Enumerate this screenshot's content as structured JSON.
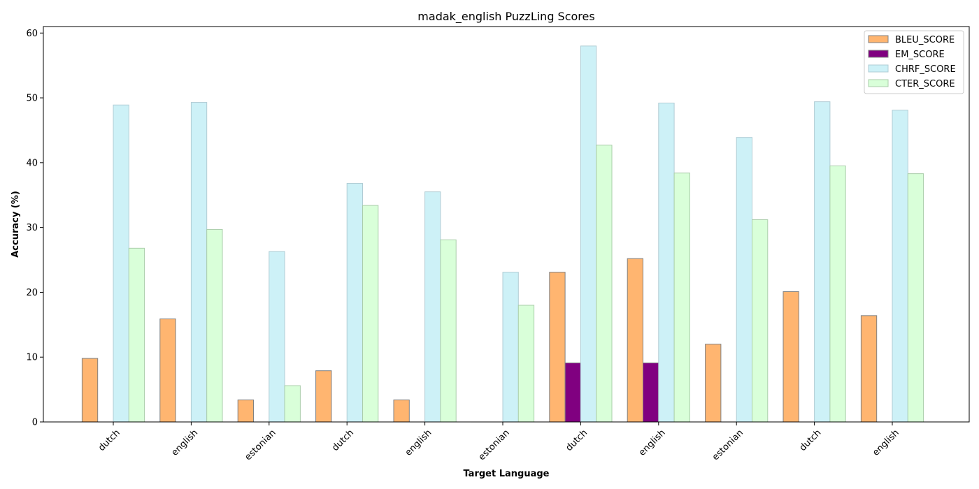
{
  "chart_data": {
    "type": "bar",
    "title": "madak_english PuzzLing Scores",
    "xlabel": "Target Language",
    "ylabel": "Accuracy (%)",
    "ylim": [
      0,
      61
    ],
    "yticks": [
      0,
      10,
      20,
      30,
      40,
      50,
      60
    ],
    "categories": [
      "dutch",
      "english",
      "estonian",
      "dutch",
      "english",
      "estonian",
      "dutch",
      "english",
      "estonian",
      "dutch",
      "english"
    ],
    "series": [
      {
        "name": "BLEU_SCORE",
        "color": "#ffb570",
        "edge": "#808080",
        "values": [
          9.8,
          15.9,
          3.4,
          7.9,
          3.4,
          0.0,
          23.1,
          25.2,
          12.0,
          20.1,
          16.4
        ]
      },
      {
        "name": "EM_SCORE",
        "color": "#800080",
        "edge": "#808080",
        "values": [
          0,
          0,
          0,
          0,
          0,
          0,
          9.1,
          9.1,
          0,
          0,
          0
        ]
      },
      {
        "name": "CHRF_SCORE",
        "color": "#cdf1f7",
        "edge": "#b0ccd4",
        "values": [
          48.9,
          49.3,
          26.3,
          36.8,
          35.5,
          23.1,
          58.0,
          49.2,
          43.9,
          49.4,
          48.1
        ]
      },
      {
        "name": "CTER_SCORE",
        "color": "#d9ffd9",
        "edge": "#aacdaa",
        "values": [
          26.8,
          29.7,
          5.6,
          33.4,
          28.1,
          18.0,
          42.7,
          38.4,
          31.2,
          39.5,
          38.3
        ]
      }
    ],
    "grid": false,
    "legend_position": "top-right"
  }
}
